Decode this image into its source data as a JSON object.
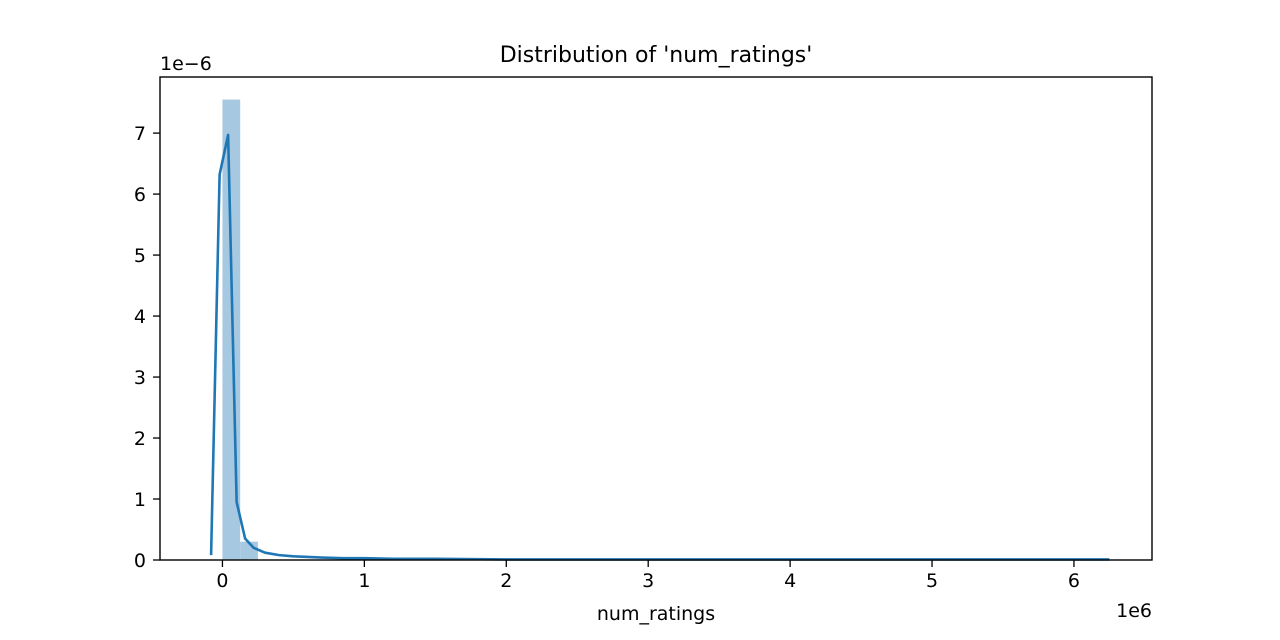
{
  "chart_data": {
    "type": "bar",
    "title": "Distribution of 'num_ratings'",
    "xlabel": "num_ratings",
    "ylabel": "",
    "x_offset_label": "1e6",
    "y_offset_label": "1e−6",
    "xlim": [
      -0.44,
      6.55
    ],
    "ylim": [
      0,
      7.92
    ],
    "x_ticks": [
      0,
      1,
      2,
      3,
      4,
      5,
      6
    ],
    "y_ticks": [
      0,
      1,
      2,
      3,
      4,
      5,
      6,
      7
    ],
    "grid": false,
    "bar_color": "#a6c8e0",
    "line_color": "#1f77b4",
    "histogram": {
      "bin_edges": [
        0.0,
        0.125,
        0.25
      ],
      "values": [
        7.55,
        0.3
      ]
    },
    "kde": {
      "x": [
        -0.08,
        -0.02,
        0.04,
        0.1,
        0.16,
        0.22,
        0.3,
        0.4,
        0.5,
        0.6,
        0.7,
        0.85,
        1.0,
        1.2,
        1.5,
        2.0,
        2.5,
        3.0,
        4.0,
        5.0,
        5.9,
        6.25
      ],
      "y": [
        0.08,
        6.32,
        6.97,
        0.95,
        0.35,
        0.2,
        0.12,
        0.08,
        0.06,
        0.05,
        0.04,
        0.03,
        0.03,
        0.02,
        0.02,
        0.01,
        0.01,
        0.01,
        0.01,
        0.01,
        0.01,
        0.01
      ]
    }
  }
}
